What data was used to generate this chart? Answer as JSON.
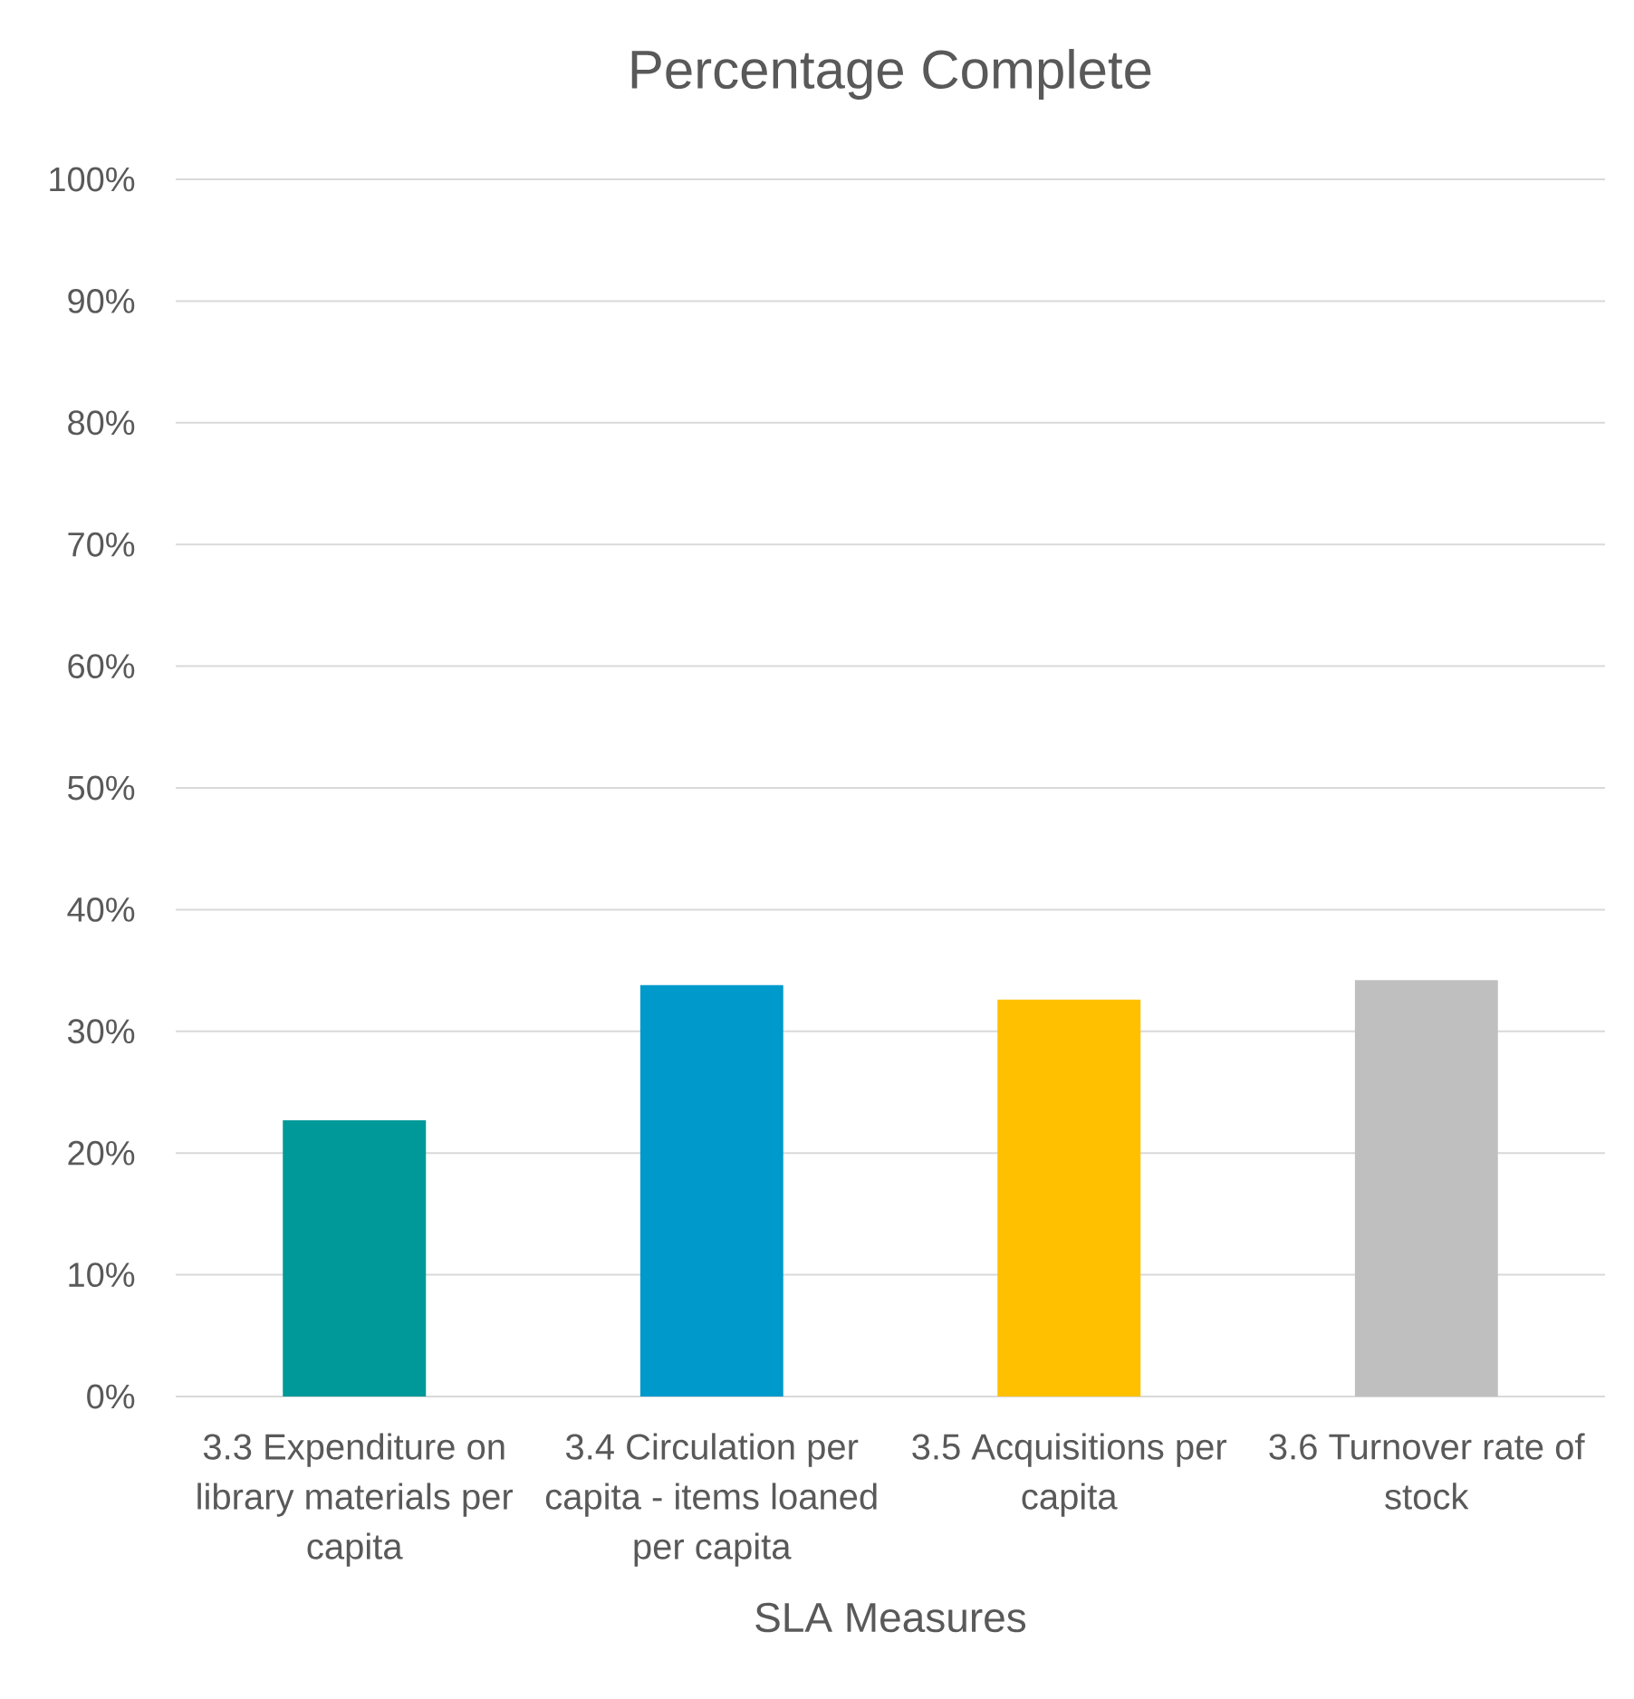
{
  "chart_data": {
    "type": "bar",
    "title": "Percentage Complete",
    "xlabel": "SLA Measures",
    "categories": [
      "3.3 Expenditure on library materials per capita",
      "3.4 Circulation per capita - items loaned per capita",
      "3.5 Acquisitions per capita",
      "3.6 Turnover rate of stock"
    ],
    "values": [
      22.7,
      33.8,
      32.6,
      34.2
    ],
    "colors": [
      "#009999",
      "#0099CC",
      "#FFC000",
      "#BFBFBF"
    ],
    "ylim": [
      0,
      100
    ],
    "yticks": [
      {
        "value": 0,
        "label": "0%"
      },
      {
        "value": 10,
        "label": "10%"
      },
      {
        "value": 20,
        "label": "20%"
      },
      {
        "value": 30,
        "label": "30%"
      },
      {
        "value": 40,
        "label": "40%"
      },
      {
        "value": 50,
        "label": "50%"
      },
      {
        "value": 60,
        "label": "60%"
      },
      {
        "value": 70,
        "label": "70%"
      },
      {
        "value": 80,
        "label": "80%"
      },
      {
        "value": 90,
        "label": "90%"
      },
      {
        "value": 100,
        "label": "100%"
      }
    ],
    "grid": "y"
  }
}
